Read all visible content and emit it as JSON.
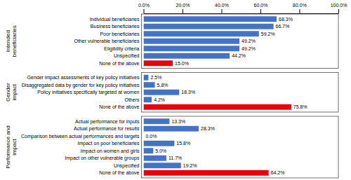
{
  "chart_data": [
    {
      "type": "bar",
      "orientation": "horizontal",
      "title": "Intended\nbeneficiaries",
      "categories": [
        "Individual beneficiaries",
        "Business beneficiaries",
        "Poor beneficiaries",
        "Other vulnerable beneficiaries",
        "Eligibility criteria",
        "Unspecified",
        "None of the above"
      ],
      "values": [
        68.3,
        66.7,
        59.2,
        49.2,
        49.2,
        44.2,
        15.0
      ],
      "value_labels": [
        "68.3%",
        "66.7%",
        "59.2%",
        "49.2%",
        "49.2%",
        "44.2%",
        "15.0%"
      ],
      "colors": [
        "#4472C4",
        "#4472C4",
        "#4472C4",
        "#4472C4",
        "#4472C4",
        "#4472C4",
        "#E8000B"
      ],
      "data_labels": true,
      "grid": false,
      "xlim": [
        0,
        100
      ],
      "xticks": [
        {
          "value": 0,
          "label": "0.0%"
        },
        {
          "value": 20,
          "label": "20.0%"
        },
        {
          "value": 40,
          "label": "40.0%"
        },
        {
          "value": 60,
          "label": "60.0%"
        },
        {
          "value": 80,
          "label": "80.0%"
        },
        {
          "value": 100,
          "label": "100.0%"
        }
      ]
    },
    {
      "type": "bar",
      "orientation": "horizontal",
      "title": "Gender\nimpact",
      "categories": [
        "Gender impact assessments of key policy initiatives",
        "Disaggregated data by gender for key policy initiatives",
        "Policy initiatives specifically targeted at women",
        "Others",
        "None of the above"
      ],
      "values": [
        2.5,
        5.8,
        18.3,
        4.2,
        75.8
      ],
      "value_labels": [
        "2.5%",
        "5.8%",
        "18.3%",
        "4.2%",
        "75.8%"
      ],
      "colors": [
        "#4472C4",
        "#4472C4",
        "#4472C4",
        "#4472C4",
        "#E8000B"
      ],
      "data_labels": true,
      "grid": false,
      "tick_labels": "y",
      "xlim": [
        0,
        100
      ]
    },
    {
      "type": "bar",
      "orientation": "horizontal",
      "title": "Performance and\nimpact",
      "categories": [
        "Actual performance for inputs",
        "Actual performance for results",
        "Comparison between actual performances and targets",
        "Impact on poor beneficiaries",
        "Impact on women and girls",
        "Impact on other vulnerable groups",
        "Unspecified",
        "None of the above"
      ],
      "values": [
        13.3,
        28.3,
        0.0,
        15.8,
        5.0,
        11.7,
        19.2,
        64.2
      ],
      "value_labels": [
        "13.3%",
        "28.3%",
        "0.0%",
        "15.8%",
        "5.0%",
        "11.7%",
        "19.2%",
        "64.2%"
      ],
      "colors": [
        "#4472C4",
        "#4472C4",
        "#4472C4",
        "#4472C4",
        "#4472C4",
        "#4472C4",
        "#4472C4",
        "#E8000B"
      ],
      "data_labels": true,
      "grid": false,
      "tick_labels": "y",
      "xlim": [
        0,
        100
      ]
    }
  ]
}
